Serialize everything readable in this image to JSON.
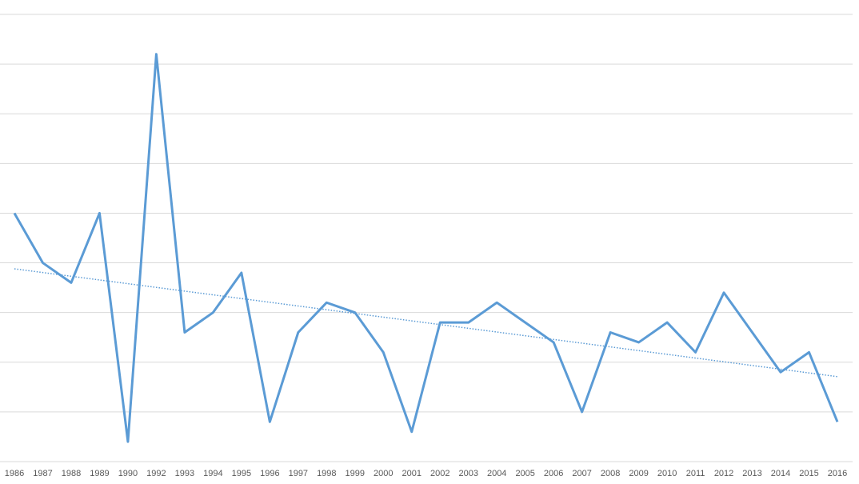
{
  "chart_data": {
    "type": "line",
    "categories": [
      "1986",
      "1987",
      "1988",
      "1989",
      "1990",
      "1992",
      "1993",
      "1994",
      "1995",
      "1996",
      "1997",
      "1998",
      "1999",
      "2000",
      "2001",
      "2002",
      "2003",
      "2004",
      "2005",
      "2006",
      "2007",
      "2008",
      "2009",
      "2010",
      "2011",
      "2012",
      "2013",
      "2014",
      "2015",
      "2016"
    ],
    "series": [
      {
        "color": "#5b9bd5",
        "values": [
          5.0,
          4.0,
          3.6,
          5.0,
          0.4,
          8.2,
          2.6,
          3.0,
          3.8,
          0.8,
          2.6,
          3.2,
          3.0,
          2.2,
          0.6,
          2.8,
          2.8,
          3.2,
          2.8,
          2.4,
          1.0,
          2.6,
          2.4,
          2.8,
          2.2,
          3.4,
          2.6,
          1.8,
          2.2,
          0.8
        ]
      }
    ],
    "trend": {
      "color": "#5b9bd5",
      "values": [
        3.88,
        1.71
      ]
    },
    "ylim": [
      0,
      9
    ],
    "ygrid": [
      0,
      1,
      2,
      3,
      4,
      5,
      6,
      7,
      8,
      9
    ],
    "grid": true
  }
}
